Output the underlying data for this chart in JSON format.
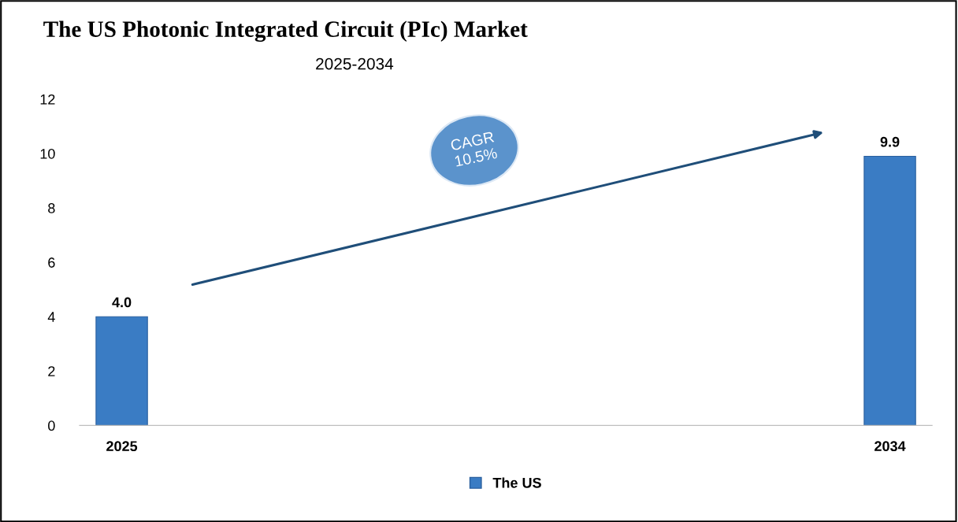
{
  "chart_data": {
    "type": "bar",
    "title": "The US Photonic Integrated Circuit (PIc) Market",
    "subtitle": "2025-2034",
    "categories": [
      "2025",
      "2034"
    ],
    "series": [
      {
        "name": "The US",
        "color": "#3a7cc4",
        "values": [
          4.0,
          9.9
        ],
        "value_labels": [
          "4.0",
          "9.9"
        ]
      }
    ],
    "ylim": [
      0,
      12
    ],
    "yticks": [
      0,
      2,
      4,
      6,
      8,
      10,
      12
    ],
    "grid": false,
    "legend": "bottom",
    "annotations": [
      "CAGR\n10.5%"
    ]
  }
}
